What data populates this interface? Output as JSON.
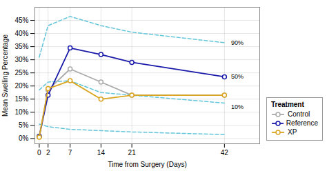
{
  "chart_data": {
    "type": "line",
    "x": [
      0,
      2,
      7,
      14,
      21,
      42
    ],
    "series": [
      {
        "name": "Control",
        "color": "#aaaaaa",
        "marker": "circle",
        "line_style": "solid",
        "values": [
          0.8,
          18.5,
          26.5,
          21.5,
          16.5,
          16.5
        ]
      },
      {
        "name": "Reference",
        "color": "#1a1aaa",
        "marker": "circle",
        "line_style": "solid",
        "values": [
          0.8,
          16.5,
          34.5,
          32.0,
          29.0,
          23.5
        ]
      },
      {
        "name": "XP",
        "color": "#DAA520",
        "marker": "circle",
        "line_style": "solid",
        "values": [
          0.5,
          19.0,
          22.0,
          15.0,
          16.5,
          16.5
        ]
      }
    ],
    "bands": [
      {
        "color": "#63c5da",
        "line_style": "dashed",
        "values": [
          31.0,
          43.0,
          46.5,
          43.0,
          40.5,
          36.5
        ]
      },
      {
        "color": "#63c5da",
        "line_style": "dashed",
        "values": [
          18.5,
          21.5,
          22.0,
          17.5,
          16.5,
          13.5
        ]
      },
      {
        "color": "#63c5da",
        "line_style": "dashed",
        "values": [
          5.5,
          4.5,
          3.5,
          3.0,
          2.5,
          1.5
        ]
      }
    ],
    "annotations": [
      {
        "text": "90%",
        "x": 43.5,
        "y": 36.5
      },
      {
        "text": "50%",
        "x": 43.5,
        "y": 23.5
      },
      {
        "text": "10%",
        "x": 43.5,
        "y": 12.0
      }
    ],
    "xlabel": "Time from Surgery (Days)",
    "ylabel": "Mean Swelling Percentage",
    "xlim": [
      -1,
      50
    ],
    "ylim": [
      -2,
      50
    ],
    "xticks": [
      0,
      2,
      7,
      14,
      21,
      42
    ],
    "yticks": [
      {
        "value": 0,
        "label": "0%"
      },
      {
        "value": 5,
        "label": "5%"
      },
      {
        "value": 10,
        "label": "10%"
      },
      {
        "value": 15,
        "label": "15%"
      },
      {
        "value": 20,
        "label": "20%"
      },
      {
        "value": 25,
        "label": "25%"
      },
      {
        "value": 30,
        "label": "30%"
      },
      {
        "value": 35,
        "label": "35%"
      },
      {
        "value": 40,
        "label": "40%"
      },
      {
        "value": 45,
        "label": "45%"
      }
    ],
    "grid": true,
    "legend": "lower right",
    "legend_title": "Treatment"
  }
}
